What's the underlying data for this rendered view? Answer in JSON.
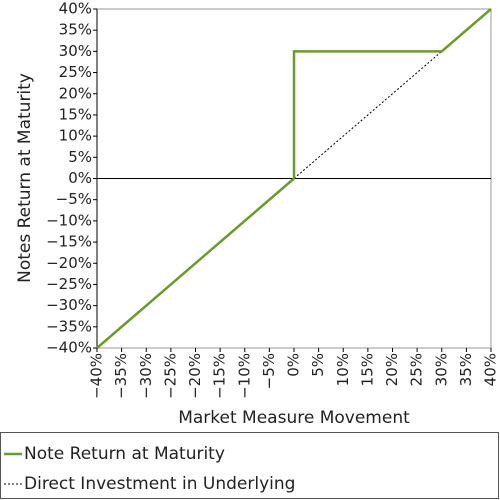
{
  "chart_data": {
    "type": "line",
    "xlabel": "Market Measure Movement",
    "ylabel": "Notes Return at Maturity",
    "xlim": [
      -40,
      40
    ],
    "ylim": [
      -40,
      40
    ],
    "xticks": [
      {
        "value": -40,
        "label": "−40%"
      },
      {
        "value": -35,
        "label": "−35%"
      },
      {
        "value": -30,
        "label": "−30%"
      },
      {
        "value": -25,
        "label": "−25%"
      },
      {
        "value": -20,
        "label": "−20%"
      },
      {
        "value": -15,
        "label": "−15%"
      },
      {
        "value": -10,
        "label": "−10%"
      },
      {
        "value": -5,
        "label": "−5%"
      },
      {
        "value": 0,
        "label": "0%"
      },
      {
        "value": 5,
        "label": "5%"
      },
      {
        "value": 10,
        "label": "10%"
      },
      {
        "value": 15,
        "label": "15%"
      },
      {
        "value": 20,
        "label": "20%"
      },
      {
        "value": 25,
        "label": "25%"
      },
      {
        "value": 30,
        "label": "30%"
      },
      {
        "value": 35,
        "label": "35%"
      },
      {
        "value": 40,
        "label": "40%"
      }
    ],
    "yticks": [
      {
        "value": -40,
        "label": "−40%"
      },
      {
        "value": -35,
        "label": "−35%"
      },
      {
        "value": -30,
        "label": "−30%"
      },
      {
        "value": -25,
        "label": "−25%"
      },
      {
        "value": -20,
        "label": "−20%"
      },
      {
        "value": -15,
        "label": "−15%"
      },
      {
        "value": -10,
        "label": "−10%"
      },
      {
        "value": -5,
        "label": "−5%"
      },
      {
        "value": 0,
        "label": "0%"
      },
      {
        "value": 5,
        "label": "5%"
      },
      {
        "value": 10,
        "label": "10%"
      },
      {
        "value": 15,
        "label": "15%"
      },
      {
        "value": 20,
        "label": "20%"
      },
      {
        "value": 25,
        "label": "25%"
      },
      {
        "value": 30,
        "label": "30%"
      },
      {
        "value": 35,
        "label": "35%"
      },
      {
        "value": 40,
        "label": "40%"
      }
    ],
    "series": [
      {
        "name": "Note Return at Maturity",
        "color": "#6b9a2f",
        "dash": "solid",
        "x": [
          -40,
          0,
          0,
          30,
          40
        ],
        "values": [
          -40,
          0,
          30,
          30,
          40
        ]
      },
      {
        "name": "Direct Investment in Underlying",
        "color": "#000000",
        "dash": "dotted",
        "x": [
          -40,
          40
        ],
        "values": [
          -40,
          40
        ]
      }
    ]
  }
}
